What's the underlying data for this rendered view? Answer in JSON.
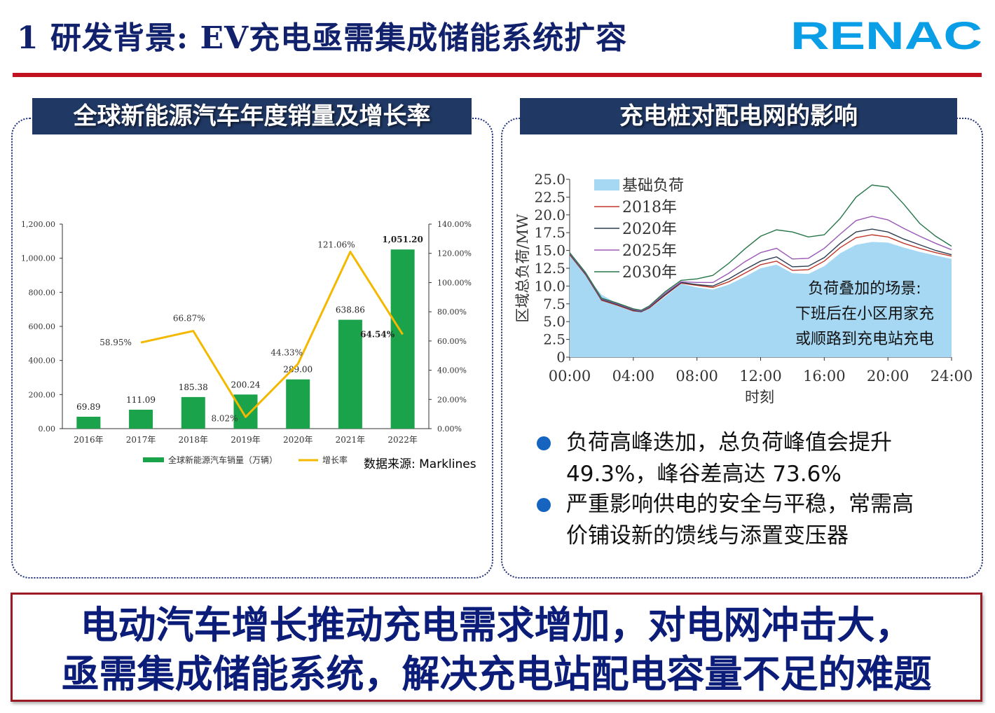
{
  "header": {
    "title": "1 研发背景: EV充电亟需集成储能系统扩容",
    "logo_text": "RENAC",
    "logo_color": "#0a9ee6"
  },
  "left_panel": {
    "heading": "全球新能源汽车年度销量及增长率",
    "source": "数据来源: Marklines"
  },
  "right_panel": {
    "heading": "充电桩对配电网的影响",
    "annotation": [
      "负荷叠加的场景:",
      "下班后在小区用家充",
      "或顺路到充电站充电"
    ],
    "bullets": [
      {
        "lines": [
          "负荷高峰迭加，总负荷峰值会提升",
          "49.3%，峰谷差高达 73.6%"
        ]
      },
      {
        "lines": [
          "严重影响供电的安全与平稳，常需高",
          "价铺设新的馈线与添置变压器"
        ]
      }
    ]
  },
  "conclusion": {
    "line1": "电动汽车增长推动充电需求增加，对电网冲击大，",
    "line2": "亟需集成储能系统，解决充电站配电容量不足的难题"
  },
  "colors": {
    "title": "#12216b",
    "accent_red": "#c1121f",
    "panel_header": "#203864",
    "bar_green": "#1aa34a",
    "line_yellow": "#f5b800",
    "bullet": "#1565c0",
    "area_blue": "#a6d8f3"
  },
  "chart_data": [
    {
      "type": "bar",
      "categories": [
        "2016年",
        "2017年",
        "2018年",
        "2019年",
        "2020年",
        "2021年",
        "2022年"
      ],
      "series": [
        {
          "name": "全球新能源汽车销量（万辆）",
          "type": "bar",
          "axis": "left",
          "values": [
            69.89,
            111.09,
            185.38,
            200.24,
            289.0,
            638.86,
            1051.2
          ],
          "labels": [
            "69.89",
            "111.09",
            "185.38",
            "200.24",
            "289.00",
            "638.86",
            "1,051.20"
          ]
        },
        {
          "name": "增长率",
          "type": "line",
          "axis": "right",
          "values": [
            null,
            58.95,
            66.87,
            8.02,
            44.33,
            121.06,
            64.54
          ],
          "labels": [
            "",
            "58.95%",
            "66.87%",
            "8.02%",
            "44.33%",
            "121.06%",
            "64.54%"
          ]
        }
      ],
      "left_axis": {
        "ylim": [
          0,
          1200
        ],
        "ticks": [
          "0.00",
          "200.00",
          "400.00",
          "600.00",
          "800.00",
          "1,000.00",
          "1,200.00"
        ]
      },
      "right_axis": {
        "ylim": [
          0,
          140
        ],
        "ticks": [
          "0.00%",
          "20.00%",
          "40.00%",
          "60.00%",
          "80.00%",
          "100.00%",
          "120.00%",
          "140.00%"
        ]
      },
      "legend_position": "bottom"
    },
    {
      "type": "area",
      "xlabel": "时刻",
      "ylabel": "区域总负荷/MW",
      "x_ticks": [
        "00:00",
        "04:00",
        "08:00",
        "12:00",
        "16:00",
        "20:00",
        "24:00"
      ],
      "y_ticks": [
        "0",
        "2.5",
        "5.0",
        "7.5",
        "10.0",
        "12.5",
        "15.0",
        "17.5",
        "20.0",
        "22.5",
        "25.0"
      ],
      "xlim": [
        0,
        24
      ],
      "ylim": [
        0,
        25
      ],
      "legend_position": "top-left",
      "series": [
        {
          "name": "基础负荷",
          "kind": "area",
          "color": "#a6d8f3",
          "x": [
            0,
            1,
            2,
            3,
            4,
            4.5,
            5,
            6,
            7,
            8,
            9,
            10,
            11,
            12,
            13,
            14,
            15,
            16,
            17,
            18,
            19,
            20,
            21,
            22,
            23,
            24
          ],
          "y": [
            14.3,
            11.5,
            8.8,
            7.5,
            6.6,
            6.3,
            6.8,
            8.5,
            10.3,
            9.8,
            9.5,
            10.2,
            11.3,
            12.5,
            13.0,
            11.8,
            11.7,
            12.8,
            14.6,
            15.8,
            16.2,
            16.1,
            15.4,
            14.8,
            14.3,
            13.8
          ]
        },
        {
          "name": "2018年",
          "kind": "line",
          "color": "#c0392b",
          "x": [
            0,
            1,
            2,
            3,
            4,
            4.5,
            5,
            6,
            7,
            8,
            9,
            10,
            11,
            12,
            13,
            14,
            15,
            16,
            17,
            18,
            19,
            20,
            21,
            22,
            23,
            24
          ],
          "y": [
            14.4,
            11.6,
            8.0,
            7.3,
            6.5,
            6.4,
            6.9,
            8.7,
            10.4,
            10.1,
            9.8,
            10.6,
            11.8,
            13.0,
            13.5,
            12.2,
            12.3,
            13.5,
            15.4,
            16.8,
            17.2,
            16.9,
            16.0,
            15.3,
            14.7,
            14.2
          ]
        },
        {
          "name": "2020年",
          "kind": "line",
          "color": "#2c3e50",
          "x": [
            0,
            1,
            2,
            3,
            4,
            4.5,
            5,
            6,
            7,
            8,
            9,
            10,
            11,
            12,
            13,
            14,
            15,
            16,
            17,
            18,
            19,
            20,
            21,
            22,
            23,
            24
          ],
          "y": [
            14.5,
            11.7,
            8.1,
            7.4,
            6.6,
            6.4,
            7.0,
            8.8,
            10.5,
            10.2,
            10.0,
            11.0,
            12.3,
            13.5,
            14.1,
            12.7,
            12.8,
            14.0,
            16.0,
            17.6,
            18.0,
            17.6,
            16.6,
            15.8,
            15.0,
            14.4
          ]
        },
        {
          "name": "2025年",
          "kind": "line",
          "color": "#9b59b6",
          "x": [
            0,
            1,
            2,
            3,
            4,
            4.5,
            5,
            6,
            7,
            8,
            9,
            10,
            11,
            12,
            13,
            14,
            15,
            16,
            17,
            18,
            19,
            20,
            21,
            22,
            23,
            24
          ],
          "y": [
            14.6,
            11.8,
            8.2,
            7.5,
            6.7,
            6.5,
            7.1,
            9.0,
            10.6,
            10.5,
            10.5,
            11.8,
            13.4,
            14.7,
            15.3,
            13.8,
            13.9,
            15.3,
            17.3,
            19.2,
            19.8,
            19.3,
            18.1,
            17.0,
            16.0,
            15.1
          ]
        },
        {
          "name": "2030年",
          "kind": "line",
          "color": "#27764a",
          "x": [
            0,
            1,
            2,
            3,
            4,
            4.5,
            5,
            6,
            7,
            8,
            9,
            10,
            11,
            12,
            13,
            14,
            15,
            16,
            17,
            18,
            19,
            20,
            21,
            22,
            23,
            24
          ],
          "y": [
            14.7,
            11.9,
            8.3,
            7.6,
            6.8,
            6.6,
            7.2,
            9.2,
            10.8,
            11.0,
            11.5,
            13.2,
            15.2,
            17.0,
            17.9,
            17.6,
            16.9,
            17.2,
            19.5,
            22.5,
            24.2,
            23.9,
            21.5,
            18.8,
            17.0,
            15.6
          ]
        }
      ]
    }
  ]
}
